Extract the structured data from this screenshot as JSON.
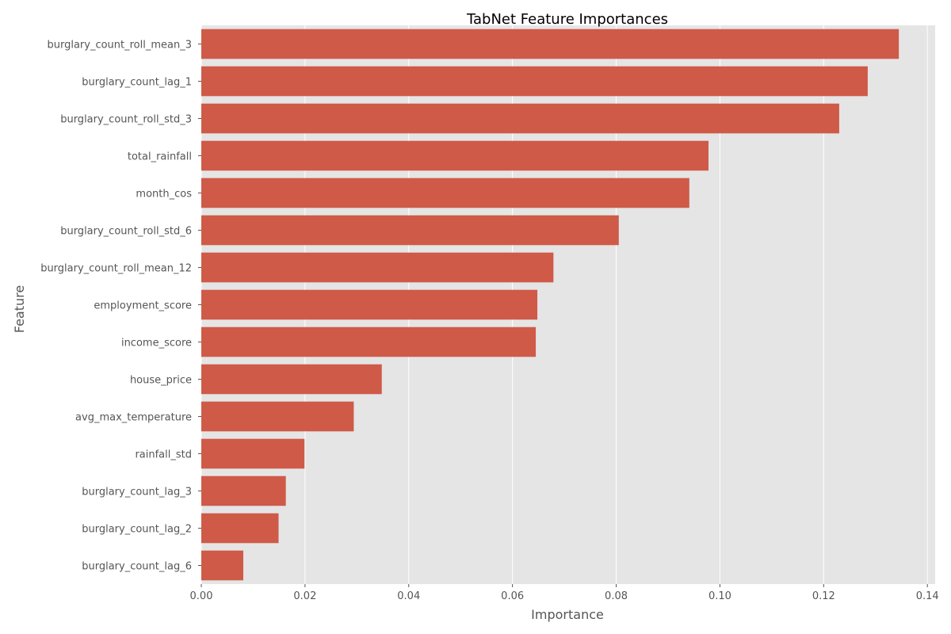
{
  "chart_data": {
    "type": "bar",
    "orientation": "horizontal",
    "title": "TabNet Feature Importances",
    "xlabel": "Importance",
    "ylabel": "Feature",
    "xlim": [
      0,
      0.1415
    ],
    "xticks": [
      0.0,
      0.02,
      0.04,
      0.06,
      0.08,
      0.1,
      0.12,
      0.14
    ],
    "xtick_labels": [
      "0.00",
      "0.02",
      "0.04",
      "0.06",
      "0.08",
      "0.10",
      "0.12",
      "0.14"
    ],
    "grid": true,
    "categories": [
      "burglary_count_roll_mean_3",
      "burglary_count_lag_1",
      "burglary_count_roll_std_3",
      "total_rainfall",
      "month_cos",
      "burglary_count_roll_std_6",
      "burglary_count_roll_mean_12",
      "employment_score",
      "income_score",
      "house_price",
      "avg_max_temperature",
      "rainfall_std",
      "burglary_count_lag_3",
      "burglary_count_lag_2",
      "burglary_count_lag_6"
    ],
    "values": [
      0.1345,
      0.1285,
      0.123,
      0.0978,
      0.0941,
      0.0805,
      0.0679,
      0.0648,
      0.0645,
      0.0348,
      0.0294,
      0.0199,
      0.0163,
      0.0149,
      0.0081
    ],
    "colors": {
      "bar": "#cf5a48",
      "plot_background": "#e5e5e5",
      "grid": "#ffffff"
    }
  }
}
